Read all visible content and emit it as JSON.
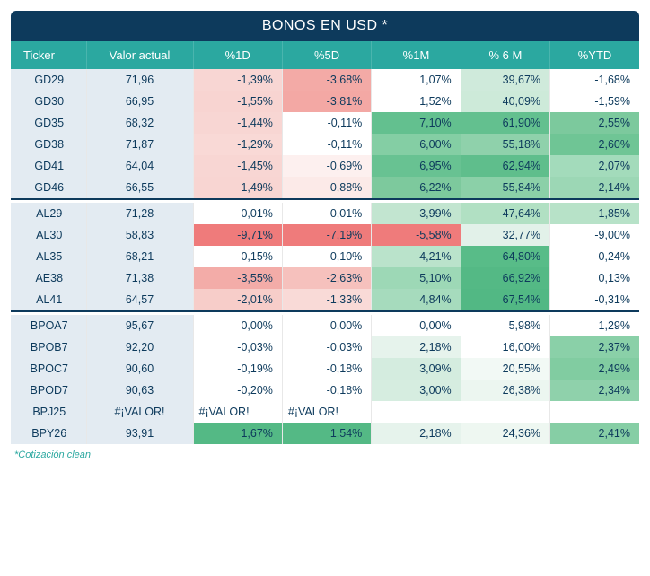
{
  "title": "BONOS EN USD *",
  "footnote": "*Cotización clean",
  "columns": [
    "Ticker",
    "Valor actual",
    "%1D",
    "%5D",
    "%1M",
    "% 6 M",
    "%YTD"
  ],
  "colors": {
    "title_bg": "#0d3a5c",
    "header_bg": "#2ba8a0",
    "ticker_bg": "#e3ebf2",
    "text": "#0d3a5c",
    "scale_neg_strong": "#ef7b7b",
    "scale_neg_mid": "#f5b1ad",
    "scale_neg_weak": "#fbe3e1",
    "scale_pos_strong": "#54b985",
    "scale_pos_mid": "#8fd1ab",
    "scale_pos_weak": "#d8efe0",
    "neutral": "#ffffff"
  },
  "groups": [
    {
      "rows": [
        {
          "ticker": "GD29",
          "valor": "71,96",
          "cells": [
            {
              "text": "-1,39%",
              "bg": "#f8d6d3"
            },
            {
              "text": "-3,68%",
              "bg": "#f3aaa6"
            },
            {
              "text": "1,07%",
              "bg": "#ffffff"
            },
            {
              "text": "39,67%",
              "bg": "#cfeadb"
            },
            {
              "text": "-1,68%",
              "bg": "#ffffff"
            }
          ]
        },
        {
          "ticker": "GD30",
          "valor": "66,95",
          "cells": [
            {
              "text": "-1,55%",
              "bg": "#f8d4d1"
            },
            {
              "text": "-3,81%",
              "bg": "#f3a8a4"
            },
            {
              "text": "1,52%",
              "bg": "#ffffff"
            },
            {
              "text": "40,09%",
              "bg": "#cdead9"
            },
            {
              "text": "-1,59%",
              "bg": "#ffffff"
            }
          ]
        },
        {
          "ticker": "GD35",
          "valor": "68,32",
          "cells": [
            {
              "text": "-1,44%",
              "bg": "#f8d6d3"
            },
            {
              "text": "-0,11%",
              "bg": "#ffffff"
            },
            {
              "text": "7,10%",
              "bg": "#63c08f"
            },
            {
              "text": "61,90%",
              "bg": "#63c08f"
            },
            {
              "text": "2,55%",
              "bg": "#7cc99d"
            }
          ]
        },
        {
          "ticker": "GD38",
          "valor": "71,87",
          "cells": [
            {
              "text": "-1,29%",
              "bg": "#f9d9d6"
            },
            {
              "text": "-0,11%",
              "bg": "#ffffff"
            },
            {
              "text": "6,00%",
              "bg": "#84cea4"
            },
            {
              "text": "55,18%",
              "bg": "#8fd1ab"
            },
            {
              "text": "2,60%",
              "bg": "#6fc595"
            }
          ]
        },
        {
          "ticker": "GD41",
          "valor": "64,04",
          "cells": [
            {
              "text": "-1,45%",
              "bg": "#f8d6d3"
            },
            {
              "text": "-0,69%",
              "bg": "#fdf0ef"
            },
            {
              "text": "6,95%",
              "bg": "#68c292"
            },
            {
              "text": "62,94%",
              "bg": "#5fbe8c"
            },
            {
              "text": "2,07%",
              "bg": "#a3dbbb"
            }
          ]
        },
        {
          "ticker": "GD46",
          "valor": "66,55",
          "cells": [
            {
              "text": "-1,49%",
              "bg": "#f8d5d2"
            },
            {
              "text": "-0,88%",
              "bg": "#fceae8"
            },
            {
              "text": "6,22%",
              "bg": "#7dc99d"
            },
            {
              "text": "55,84%",
              "bg": "#8bd0a8"
            },
            {
              "text": "2,14%",
              "bg": "#9cd7b5"
            }
          ]
        }
      ]
    },
    {
      "rows": [
        {
          "ticker": "AL29",
          "valor": "71,28",
          "cells": [
            {
              "text": "0,01%",
              "bg": "#ffffff"
            },
            {
              "text": "0,01%",
              "bg": "#ffffff"
            },
            {
              "text": "3,99%",
              "bg": "#c2e5d0"
            },
            {
              "text": "47,64%",
              "bg": "#b1e0c3"
            },
            {
              "text": "1,85%",
              "bg": "#b7e2c8"
            }
          ]
        },
        {
          "ticker": "AL30",
          "valor": "58,83",
          "cells": [
            {
              "text": "-9,71%",
              "bg": "#ef7b7b"
            },
            {
              "text": "-7,19%",
              "bg": "#ef7b7b"
            },
            {
              "text": "-5,58%",
              "bg": "#ef7b7b"
            },
            {
              "text": "32,77%",
              "bg": "#e2f1e9"
            },
            {
              "text": "-9,00%",
              "bg": "#ffffff"
            }
          ]
        },
        {
          "ticker": "AL35",
          "valor": "68,21",
          "cells": [
            {
              "text": "-0,15%",
              "bg": "#ffffff"
            },
            {
              "text": "-0,10%",
              "bg": "#ffffff"
            },
            {
              "text": "4,21%",
              "bg": "#bae3cb"
            },
            {
              "text": "64,80%",
              "bg": "#58bc88"
            },
            {
              "text": "-0,24%",
              "bg": "#ffffff"
            }
          ]
        },
        {
          "ticker": "AE38",
          "valor": "71,38",
          "cells": [
            {
              "text": "-3,55%",
              "bg": "#f3aca8"
            },
            {
              "text": "-2,63%",
              "bg": "#f6c1bd"
            },
            {
              "text": "5,10%",
              "bg": "#9dd8b6"
            },
            {
              "text": "66,92%",
              "bg": "#54b985"
            },
            {
              "text": "0,13%",
              "bg": "#ffffff"
            }
          ]
        },
        {
          "ticker": "AL41",
          "valor": "64,57",
          "cells": [
            {
              "text": "-2,01%",
              "bg": "#f7cdc9"
            },
            {
              "text": "-1,33%",
              "bg": "#f9dad7"
            },
            {
              "text": "4,84%",
              "bg": "#a6dbbd"
            },
            {
              "text": "67,54%",
              "bg": "#52b884"
            },
            {
              "text": "-0,31%",
              "bg": "#ffffff"
            }
          ]
        }
      ]
    },
    {
      "rows": [
        {
          "ticker": "BPOA7",
          "valor": "95,67",
          "cells": [
            {
              "text": "0,00%",
              "bg": "#ffffff"
            },
            {
              "text": "0,00%",
              "bg": "#ffffff"
            },
            {
              "text": "0,00%",
              "bg": "#ffffff"
            },
            {
              "text": "5,98%",
              "bg": "#ffffff"
            },
            {
              "text": "1,29%",
              "bg": "#ffffff"
            }
          ]
        },
        {
          "ticker": "BPOB7",
          "valor": "92,20",
          "cells": [
            {
              "text": "-0,03%",
              "bg": "#ffffff"
            },
            {
              "text": "-0,03%",
              "bg": "#ffffff"
            },
            {
              "text": "2,18%",
              "bg": "#e6f3ec"
            },
            {
              "text": "16,00%",
              "bg": "#ffffff"
            },
            {
              "text": "2,37%",
              "bg": "#8ad0a8"
            }
          ]
        },
        {
          "ticker": "BPOC7",
          "valor": "90,60",
          "cells": [
            {
              "text": "-0,19%",
              "bg": "#ffffff"
            },
            {
              "text": "-0,18%",
              "bg": "#ffffff"
            },
            {
              "text": "3,09%",
              "bg": "#d4ecdf"
            },
            {
              "text": "20,55%",
              "bg": "#f2f9f5"
            },
            {
              "text": "2,49%",
              "bg": "#81cca1"
            }
          ]
        },
        {
          "ticker": "BPOD7",
          "valor": "90,63",
          "cells": [
            {
              "text": "-0,20%",
              "bg": "#ffffff"
            },
            {
              "text": "-0,18%",
              "bg": "#ffffff"
            },
            {
              "text": "3,00%",
              "bg": "#d6ede0"
            },
            {
              "text": "26,38%",
              "bg": "#ecf6f0"
            },
            {
              "text": "2,34%",
              "bg": "#8fd1ab"
            }
          ]
        },
        {
          "ticker": "BPJ25",
          "valor": "#¡VALOR!",
          "cells": [
            {
              "text": "#¡VALOR!",
              "bg": "#ffffff",
              "align": "left"
            },
            {
              "text": "#¡VALOR!",
              "bg": "#ffffff",
              "align": "left"
            },
            {
              "text": "",
              "bg": "#ffffff"
            },
            {
              "text": "",
              "bg": "#ffffff"
            },
            {
              "text": "",
              "bg": "#ffffff"
            }
          ]
        },
        {
          "ticker": "BPY26",
          "valor": "93,91",
          "cells": [
            {
              "text": "1,67%",
              "bg": "#54b985"
            },
            {
              "text": "1,54%",
              "bg": "#54b985"
            },
            {
              "text": "2,18%",
              "bg": "#e6f3ec"
            },
            {
              "text": "24,36%",
              "bg": "#eef7f1"
            },
            {
              "text": "2,41%",
              "bg": "#86cea5"
            }
          ]
        }
      ]
    }
  ]
}
